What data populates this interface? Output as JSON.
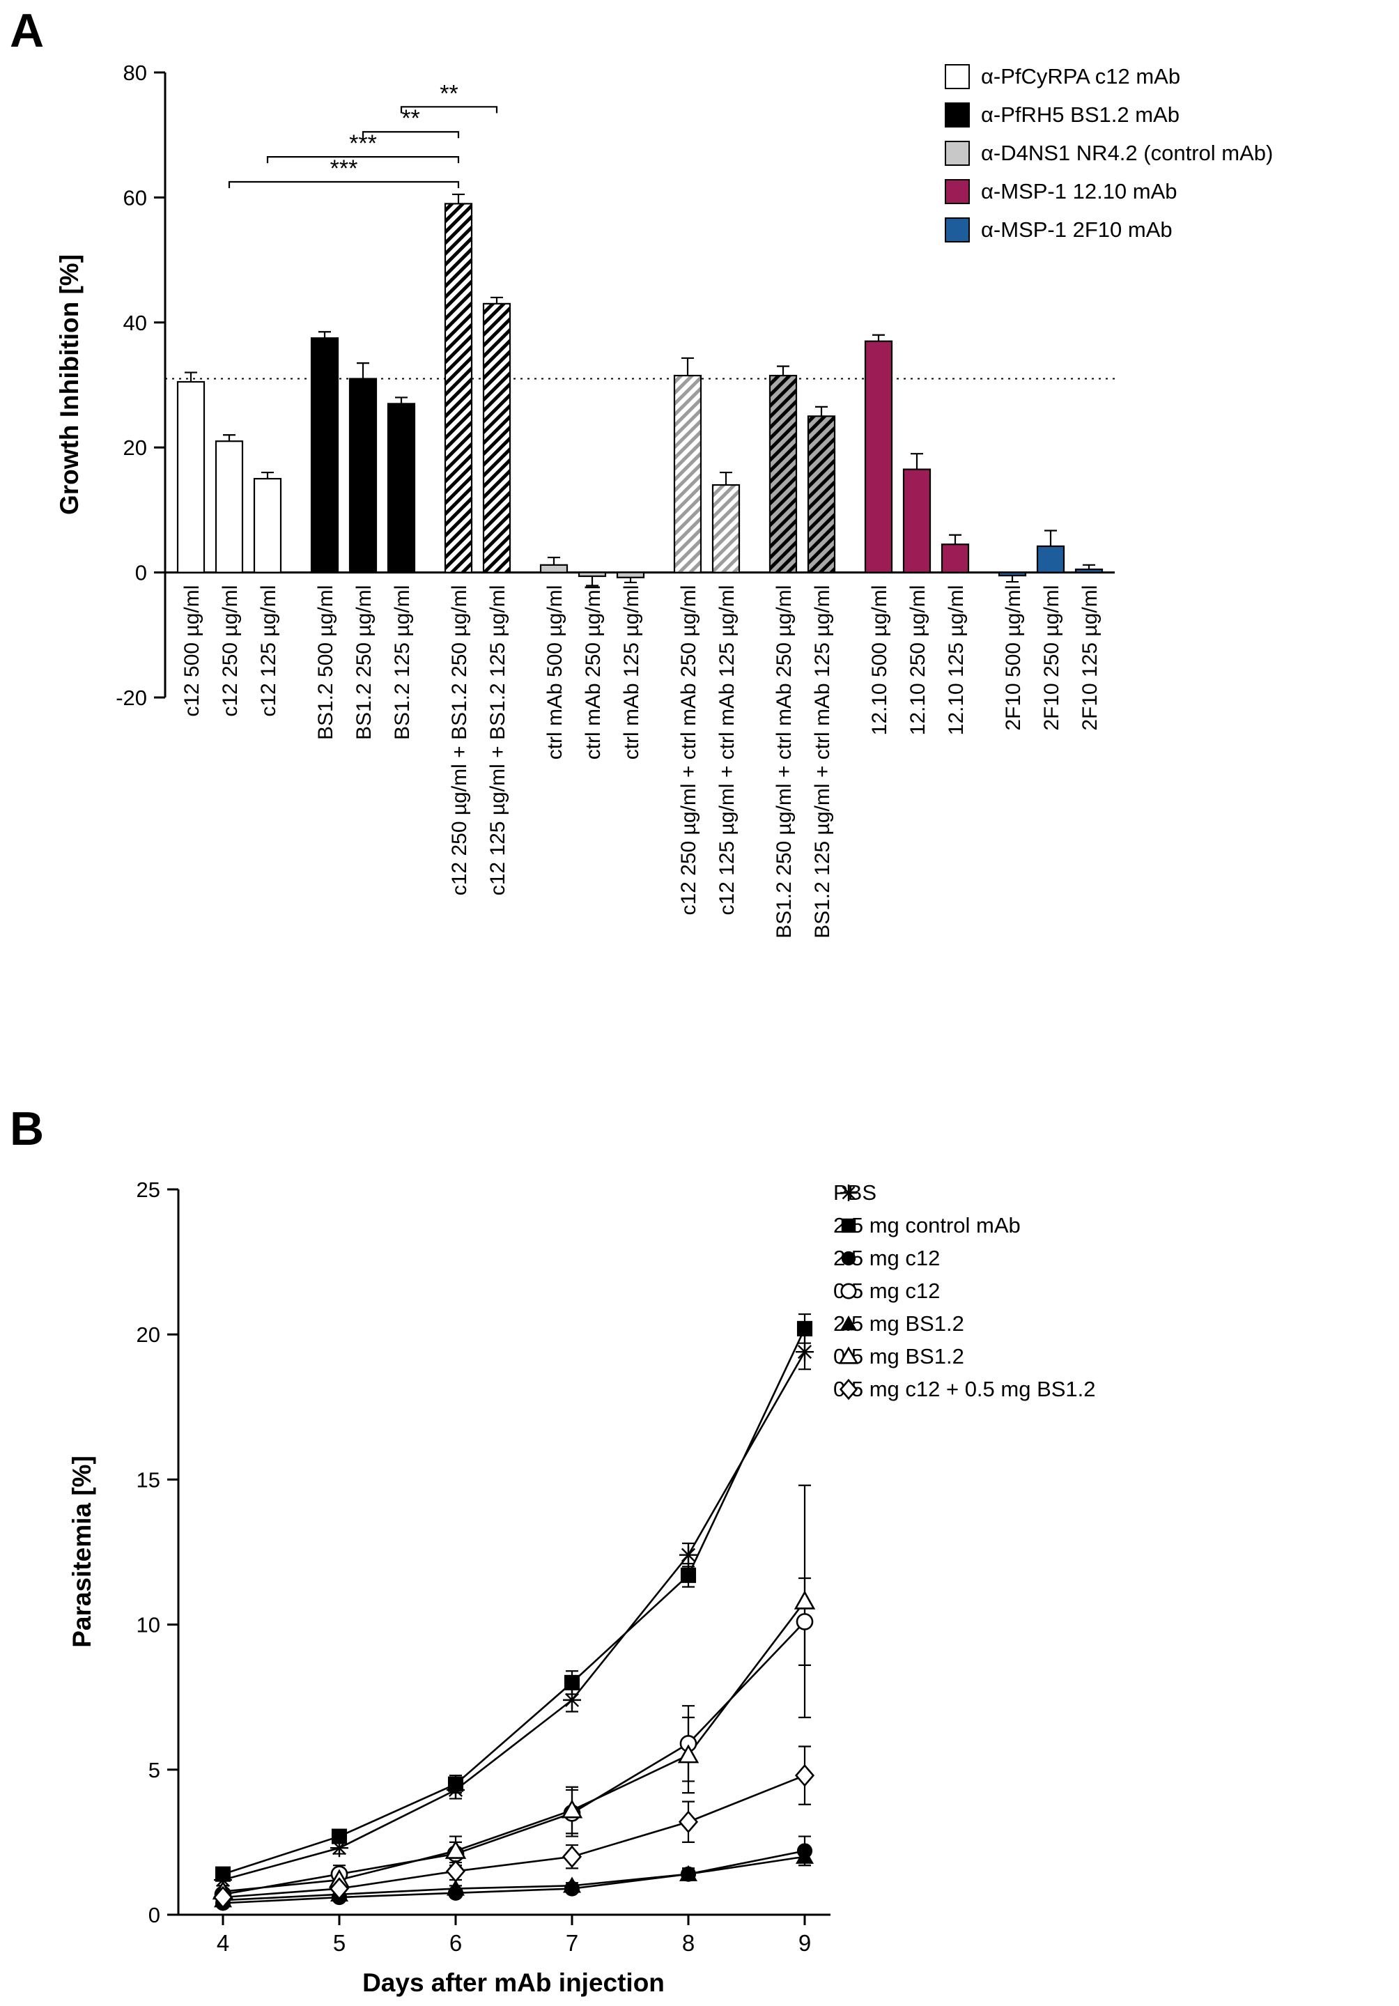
{
  "chart_data": [
    {
      "type": "bar",
      "panel": "A",
      "title": "",
      "ylabel": "Growth Inhibition [%]",
      "ylim": [
        -20,
        80
      ],
      "yticks": [
        80,
        60,
        40,
        20,
        0,
        -20
      ],
      "reference_line_y": 31,
      "grid": false,
      "legend_position": "top-right",
      "legend": [
        {
          "label": "α-PfCyRPA c12 mAb",
          "style": "white"
        },
        {
          "label": "α-PfRH5 BS1.2 mAb",
          "style": "black"
        },
        {
          "label": "α-D4NS1 NR4.2 (control mAb)",
          "style": "gray"
        },
        {
          "label": "α-MSP-1 12.10 mAb",
          "style": "maroon"
        },
        {
          "label": "α-MSP-1 2F10 mAb",
          "style": "blue"
        }
      ],
      "bar_styles": {
        "white": {
          "fill": "#ffffff"
        },
        "black": {
          "fill": "#000000"
        },
        "gray": {
          "fill": "#c8c8c8"
        },
        "maroon": {
          "fill": "#9c1d56"
        },
        "blue": {
          "fill": "#1d5d9b"
        },
        "hatch-black": {
          "fill": "#ffffff",
          "hatch": "#000000"
        },
        "hatch-gray": {
          "fill": "#ffffff",
          "hatch": "#9c9c9c"
        },
        "hatch-dark": {
          "fill": "#a8a8a8",
          "hatch": "#000000"
        }
      },
      "groups": [
        {
          "bars": [
            {
              "label": "c12 500 µg/ml",
              "value": 30.5,
              "error": 1.5,
              "style": "white"
            },
            {
              "label": "c12 250 µg/ml",
              "value": 21,
              "error": 1,
              "style": "white"
            },
            {
              "label": "c12 125 µg/ml",
              "value": 15,
              "error": 1,
              "style": "white"
            }
          ]
        },
        {
          "bars": [
            {
              "label": "BS1.2 500 µg/ml",
              "value": 37.5,
              "error": 1,
              "style": "black"
            },
            {
              "label": "BS1.2 250 µg/ml",
              "value": 31,
              "error": 2.5,
              "style": "black"
            },
            {
              "label": "BS1.2 125 µg/ml",
              "value": 27,
              "error": 1,
              "style": "black"
            }
          ]
        },
        {
          "bars": [
            {
              "label": "c12 250 µg/ml + BS1.2 250 µg/ml",
              "value": 59,
              "error": 1.5,
              "style": "hatch-black"
            },
            {
              "label": "c12 125 µg/ml + BS1.2 125 µg/ml",
              "value": 43,
              "error": 1,
              "style": "hatch-black"
            }
          ]
        },
        {
          "bars": [
            {
              "label": "ctrl mAb 500 µg/ml",
              "value": 1.2,
              "error": 1.2,
              "style": "gray"
            },
            {
              "label": "ctrl mAb 250 µg/ml",
              "value": -0.6,
              "error": 1.5,
              "style": "gray"
            },
            {
              "label": "ctrl mAb 125 µg/ml",
              "value": -0.8,
              "error": 0.8,
              "style": "gray"
            }
          ]
        },
        {
          "bars": [
            {
              "label": "c12 250 µg/ml + ctrl mAb 250 µg/ml",
              "value": 31.5,
              "error": 2.8,
              "style": "hatch-gray"
            },
            {
              "label": "c12 125 µg/ml + ctrl mAb 125 µg/ml",
              "value": 14,
              "error": 2,
              "style": "hatch-gray"
            }
          ]
        },
        {
          "bars": [
            {
              "label": "BS1.2 250 µg/ml + ctrl mAb 250 µg/ml",
              "value": 31.5,
              "error": 1.5,
              "style": "hatch-dark"
            },
            {
              "label": "BS1.2 125 µg/ml + ctrl mAb 125 µg/ml",
              "value": 25,
              "error": 1.5,
              "style": "hatch-dark"
            }
          ]
        },
        {
          "bars": [
            {
              "label": "12.10 500 µg/ml",
              "value": 37,
              "error": 1,
              "style": "maroon"
            },
            {
              "label": "12.10 250 µg/ml",
              "value": 16.5,
              "error": 2.5,
              "style": "maroon"
            },
            {
              "label": "12.10 125 µg/ml",
              "value": 4.5,
              "error": 1.5,
              "style": "maroon"
            }
          ]
        },
        {
          "bars": [
            {
              "label": "2F10 500 µg/ml",
              "value": -0.5,
              "error": 1,
              "style": "blue"
            },
            {
              "label": "2F10 250 µg/ml",
              "value": 4.2,
              "error": 2.5,
              "style": "blue"
            },
            {
              "label": "2F10 125 µg/ml",
              "value": 0.5,
              "error": 0.7,
              "style": "blue"
            }
          ]
        }
      ],
      "significance_brackets": [
        {
          "from_bar": 1,
          "to_bar": 6,
          "stars": "***"
        },
        {
          "from_bar": 2,
          "to_bar": 6,
          "stars": "***"
        },
        {
          "from_bar": 4,
          "to_bar": 6,
          "stars": "**"
        },
        {
          "from_bar": 5,
          "to_bar": 7,
          "stars": "**"
        }
      ]
    },
    {
      "type": "line",
      "panel": "B",
      "title": "",
      "xlabel": "Days after mAb injection",
      "ylabel": "Parasitemia [%]",
      "xlim": [
        3.6,
        9.5
      ],
      "ylim": [
        0,
        25
      ],
      "xticks": [
        4,
        5,
        6,
        7,
        8,
        9
      ],
      "yticks": [
        0,
        5,
        10,
        15,
        20,
        25
      ],
      "x": [
        4,
        5,
        6,
        7,
        8,
        9
      ],
      "grid": false,
      "legend_position": "top-right",
      "series": [
        {
          "name": "PBS",
          "marker": "star",
          "values": [
            1.2,
            2.3,
            4.3,
            7.4,
            12.4,
            19.4
          ],
          "errors": [
            0.2,
            0.2,
            0.3,
            0.4,
            0.4,
            0.6
          ]
        },
        {
          "name": "2.5 mg control mAb",
          "marker": "square-filled",
          "values": [
            1.4,
            2.7,
            4.5,
            8.0,
            11.7,
            20.2
          ],
          "errors": [
            0.2,
            0.2,
            0.3,
            0.4,
            0.4,
            0.5
          ]
        },
        {
          "name": "2.5 mg c12",
          "marker": "circle-filled",
          "values": [
            0.4,
            0.6,
            0.75,
            0.9,
            1.4,
            2.2
          ],
          "errors": [
            0.1,
            0.1,
            0.1,
            0.1,
            0.2,
            0.5
          ]
        },
        {
          "name": "0.5 mg c12",
          "marker": "circle-open",
          "values": [
            0.7,
            1.4,
            2.1,
            3.5,
            5.9,
            10.1
          ],
          "errors": [
            0.15,
            0.3,
            0.4,
            0.8,
            1.3,
            1.5
          ]
        },
        {
          "name": "2.5 mg BS1.2",
          "marker": "triangle-filled",
          "values": [
            0.5,
            0.7,
            0.9,
            1.0,
            1.4,
            2.0
          ],
          "errors": [
            0.1,
            0.1,
            0.1,
            0.1,
            0.2,
            0.3
          ]
        },
        {
          "name": "0.5 mg BS1.2",
          "marker": "triangle-open",
          "values": [
            0.8,
            1.2,
            2.2,
            3.6,
            5.5,
            10.8
          ],
          "errors": [
            0.2,
            0.3,
            0.5,
            0.8,
            1.3,
            4.0
          ]
        },
        {
          "name": "0.5 mg c12 + 0.5 mg BS1.2",
          "marker": "diamond-open",
          "values": [
            0.6,
            0.9,
            1.5,
            2.0,
            3.2,
            4.8
          ],
          "errors": [
            0.1,
            0.2,
            0.3,
            0.4,
            0.7,
            1.0
          ]
        }
      ]
    }
  ]
}
